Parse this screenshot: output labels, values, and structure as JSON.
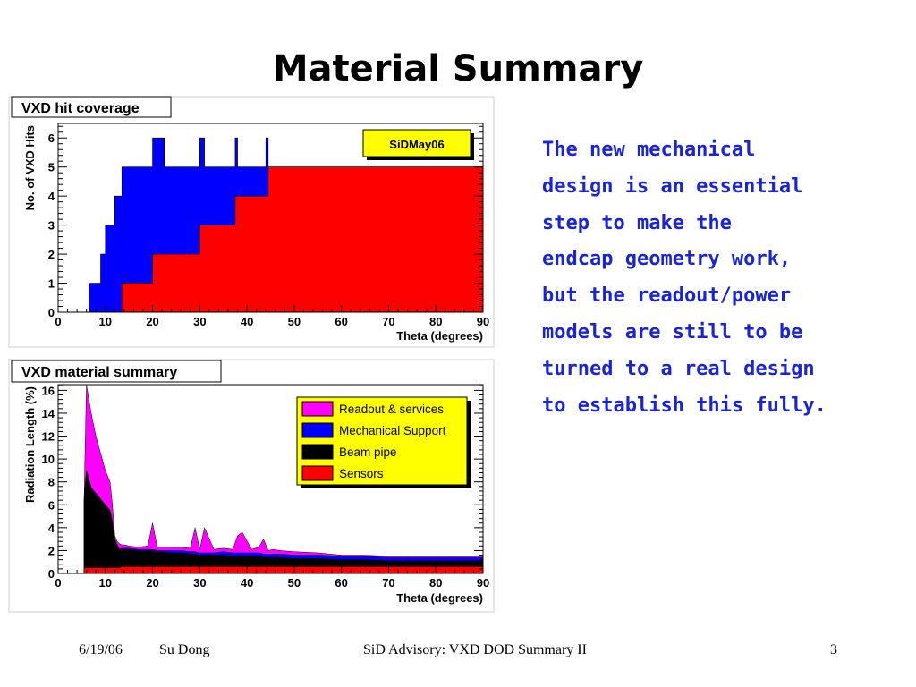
{
  "slide": {
    "title": "Material Summary",
    "body_lines": [
      "The new mechanical",
      "design is an essential",
      "step to make the",
      "endcap geometry work,",
      "but the readout/power",
      "models are still to be",
      "turned to a real design",
      "to establish this fully."
    ],
    "text_color": "#1a24d4"
  },
  "footer": {
    "date": "6/19/06",
    "author": "Su Dong",
    "center": "SiD Advisory: VXD DOD Summary II",
    "page": "3"
  },
  "chart_data": [
    {
      "type": "area",
      "title": "VXD hit coverage",
      "xlabel": "Theta (degrees)",
      "ylabel": "No. of VXD Hits",
      "xlim": [
        0,
        90
      ],
      "ylim": [
        0,
        6.5
      ],
      "x_ticks": [
        "0",
        "10",
        "20",
        "30",
        "40",
        "50",
        "60",
        "70",
        "80",
        "90"
      ],
      "y_ticks": [
        "0",
        "1",
        "2",
        "3",
        "4",
        "5",
        "6"
      ],
      "legend": {
        "text": "SiDMay06",
        "placement": "top-right",
        "fill": "#ffff00"
      },
      "series": [
        {
          "color": "#0000ff",
          "steps": [
            [
              6.5,
              1
            ],
            [
              9.0,
              2
            ],
            [
              10.0,
              3
            ],
            [
              12.0,
              4
            ],
            [
              13.5,
              5
            ],
            [
              20.0,
              6
            ],
            [
              22.5,
              5
            ],
            [
              30.0,
              6
            ],
            [
              31.0,
              5
            ],
            [
              37.5,
              6
            ],
            [
              38.0,
              5
            ],
            [
              44.0,
              6
            ],
            [
              44.5,
              5
            ],
            [
              90.0,
              5
            ]
          ]
        },
        {
          "color": "#ff0000",
          "steps": [
            [
              13.5,
              1
            ],
            [
              20.0,
              2
            ],
            [
              30.0,
              3
            ],
            [
              37.5,
              4
            ],
            [
              44.5,
              5
            ],
            [
              90.0,
              5
            ]
          ]
        }
      ],
      "grid": false
    },
    {
      "type": "area",
      "title": "VXD material summary",
      "xlabel": "Theta (degrees)",
      "ylabel": "Radiation Length (%)",
      "xlim": [
        0,
        90
      ],
      "ylim": [
        0,
        16.5
      ],
      "x_ticks": [
        "0",
        "10",
        "20",
        "30",
        "40",
        "50",
        "60",
        "70",
        "80",
        "90"
      ],
      "y_ticks": [
        "0",
        "2",
        "4",
        "6",
        "8",
        "10",
        "12",
        "14",
        "16"
      ],
      "legend": {
        "placement": "top-right",
        "fill": "#ffff00"
      },
      "x": [
        5.5,
        6.0,
        7.0,
        8.0,
        9.0,
        10.0,
        11.0,
        11.5,
        12.0,
        12.5,
        13.0,
        13.5,
        14.0,
        15.0,
        17.0,
        19.0,
        20.0,
        21.0,
        22.0,
        24.0,
        26.0,
        28.0,
        29.0,
        30.0,
        31.0,
        33.0,
        35.0,
        37.0,
        38.0,
        39.0,
        41.0,
        42.5,
        43.5,
        44.5,
        45.5,
        47.0,
        50.0,
        55.0,
        60.0,
        65.0,
        70.0,
        75.0,
        80.0,
        85.0,
        90.0
      ],
      "series": [
        {
          "name": "Sensors",
          "color": "#ff0000",
          "values": [
            0.5,
            0.5,
            0.5,
            0.5,
            0.5,
            0.5,
            0.5,
            0.5,
            0.5,
            0.5,
            0.5,
            0.6,
            0.6,
            0.6,
            0.6,
            0.6,
            0.6,
            0.6,
            0.6,
            0.6,
            0.6,
            0.6,
            0.6,
            0.6,
            0.6,
            0.6,
            0.6,
            0.6,
            0.6,
            0.6,
            0.6,
            0.6,
            0.6,
            0.6,
            0.6,
            0.6,
            0.6,
            0.6,
            0.6,
            0.6,
            0.6,
            0.6,
            0.6,
            0.6,
            0.6
          ]
        },
        {
          "name": "Beam pipe",
          "color": "#000000",
          "values": [
            6.0,
            8.5,
            7.0,
            6.5,
            6.0,
            5.5,
            5.0,
            4.0,
            2.5,
            2.0,
            1.6,
            1.6,
            1.5,
            1.5,
            1.4,
            1.4,
            1.4,
            1.3,
            1.3,
            1.2,
            1.2,
            1.1,
            1.1,
            1.0,
            1.0,
            1.0,
            1.0,
            0.9,
            0.9,
            0.9,
            0.9,
            0.9,
            0.8,
            0.8,
            0.8,
            0.8,
            0.7,
            0.7,
            0.6,
            0.6,
            0.5,
            0.5,
            0.5,
            0.5,
            0.5
          ]
        },
        {
          "name": "Mechanical Support",
          "color": "#0000ff",
          "values": [
            0.0,
            0.0,
            0.0,
            0.0,
            0.0,
            0.0,
            0.0,
            0.0,
            0.0,
            0.0,
            0.0,
            0.0,
            0.1,
            0.1,
            0.1,
            0.1,
            0.1,
            0.1,
            0.1,
            0.2,
            0.2,
            0.2,
            0.2,
            0.2,
            0.2,
            0.2,
            0.3,
            0.3,
            0.3,
            0.3,
            0.3,
            0.3,
            0.3,
            0.3,
            0.3,
            0.3,
            0.3,
            0.3,
            0.3,
            0.3,
            0.3,
            0.3,
            0.3,
            0.3,
            0.3
          ]
        },
        {
          "name": "Readout & services",
          "color": "#ff00ff",
          "values": [
            0.0,
            7.5,
            6.5,
            5.0,
            4.0,
            3.0,
            2.5,
            1.5,
            0.3,
            0.3,
            0.5,
            0.3,
            0.3,
            0.2,
            0.2,
            0.3,
            2.3,
            0.3,
            0.3,
            0.3,
            0.3,
            0.3,
            2.1,
            0.3,
            2.2,
            0.3,
            0.3,
            0.3,
            1.5,
            1.8,
            0.3,
            0.5,
            1.3,
            0.3,
            0.4,
            0.3,
            0.3,
            0.2,
            0.1,
            0.1,
            0.1,
            0.1,
            0.1,
            0.1,
            0.1
          ]
        }
      ],
      "grid": false
    }
  ]
}
